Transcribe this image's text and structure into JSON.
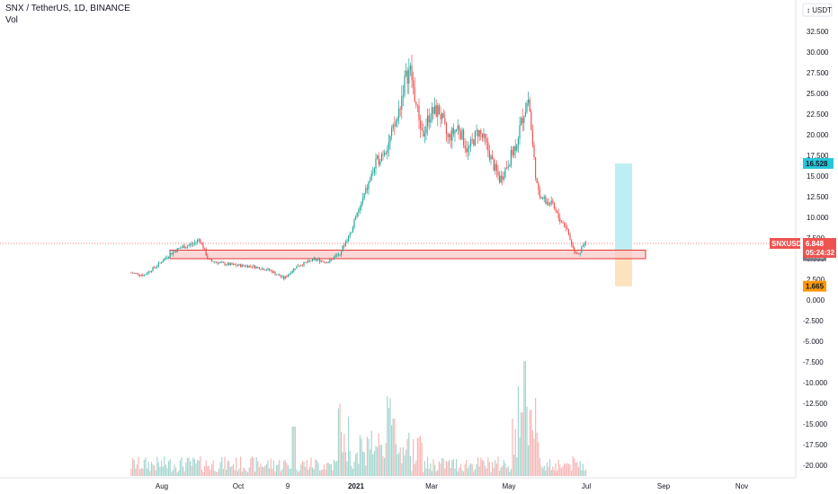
{
  "header": {
    "symbol_line": "SNX / TetherUS, 1D, BINANCE",
    "volume_label": "Vol"
  },
  "price_axis": {
    "currency_button": "USDT",
    "ticks": [
      "32.500",
      "30.000",
      "27.500",
      "25.000",
      "22.500",
      "20.000",
      "17.500",
      "15.000",
      "12.500",
      "10.000",
      "7.500",
      "5.000",
      "2.500",
      "0.000",
      "-2.500",
      "-5.000",
      "-7.500",
      "-10.000",
      "-12.500",
      "-15.000",
      "-17.500",
      "-20.000"
    ]
  },
  "time_axis": {
    "labels": [
      {
        "text": "Aug",
        "bold": false
      },
      {
        "text": "Oct",
        "bold": false
      },
      {
        "text": "9",
        "bold": false
      },
      {
        "text": "2021",
        "bold": true
      },
      {
        "text": "Mar",
        "bold": false
      },
      {
        "text": "May",
        "bold": false
      },
      {
        "text": "Jul",
        "bold": false
      },
      {
        "text": "Sep",
        "bold": false
      },
      {
        "text": "Nov",
        "bold": false
      }
    ]
  },
  "price_tags": {
    "target": {
      "value": "16.528",
      "color": "#26c6da"
    },
    "symbol": {
      "name": "SNXUSDT",
      "value": "6.848",
      "countdown": "05:24:32",
      "color": "#ef5350"
    },
    "zone": {
      "value": "6.032",
      "color": "#787b86"
    },
    "stop": {
      "value": "1.665",
      "color": "#ff9800"
    }
  },
  "colors": {
    "up": "#26a69a",
    "down": "#ef5350",
    "up_volume": "#a5d6d0",
    "down_volume": "#f7b7b6",
    "support_zone_fill": "#f8c8c8",
    "support_zone_border": "#e53935",
    "target_fill": "#bdeef4",
    "stop_fill": "#fde2c0"
  },
  "chart_data": {
    "type": "candlestick",
    "price_scale": {
      "min": -20,
      "max": 35
    },
    "support_zone": [
      5.0,
      6.032
    ],
    "current_price": 6.848,
    "long_position": {
      "entry": 6.032,
      "target": 16.528,
      "stop": 1.665
    },
    "key_prices": [
      {
        "date": "Jul 2020",
        "price": 3.5
      },
      {
        "date": "Aug 2020",
        "price": 6.5
      },
      {
        "date": "Sep 2020",
        "price": 4.0
      },
      {
        "date": "Nov 2020",
        "price": 2.5
      },
      {
        "date": "Dec 2020",
        "price": 4.5
      },
      {
        "date": "Jan 2021",
        "price": 8.0
      },
      {
        "date": "Feb 2021",
        "price": 28.5
      },
      {
        "date": "Mar 2021",
        "price": 19.0
      },
      {
        "date": "Apr 2021",
        "price": 14.0
      },
      {
        "date": "May 2021",
        "price": 25.0
      },
      {
        "date": "Jun 2021",
        "price": 9.0
      },
      {
        "date": "Jul 2021",
        "price": 6.8
      }
    ]
  }
}
